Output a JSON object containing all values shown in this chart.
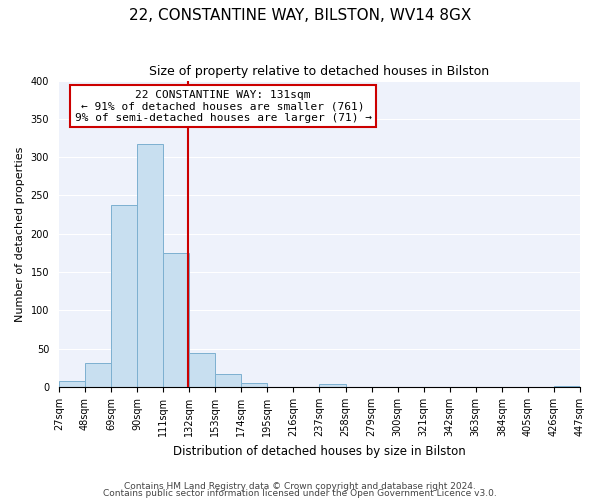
{
  "title": "22, CONSTANTINE WAY, BILSTON, WV14 8GX",
  "subtitle": "Size of property relative to detached houses in Bilston",
  "xlabel": "Distribution of detached houses by size in Bilston",
  "ylabel": "Number of detached properties",
  "bar_edges": [
    27,
    48,
    69,
    90,
    111,
    132,
    153,
    174,
    195,
    216,
    237,
    258,
    279,
    300,
    321,
    342,
    363,
    384,
    405,
    426,
    447
  ],
  "bar_heights": [
    8,
    32,
    238,
    317,
    175,
    45,
    17,
    5,
    0,
    0,
    4,
    0,
    0,
    0,
    0,
    0,
    0,
    0,
    0,
    2
  ],
  "bar_color": "#c8dff0",
  "bar_edgecolor": "#7db0d0",
  "property_line_x": 131,
  "property_line_color": "#cc0000",
  "annotation_title": "22 CONSTANTINE WAY: 131sqm",
  "annotation_line1": "← 91% of detached houses are smaller (761)",
  "annotation_line2": "9% of semi-detached houses are larger (71) →",
  "annotation_box_color": "#ffffff",
  "annotation_box_edgecolor": "#cc0000",
  "ylim": [
    0,
    400
  ],
  "yticks": [
    0,
    50,
    100,
    150,
    200,
    250,
    300,
    350,
    400
  ],
  "tick_labels": [
    "27sqm",
    "48sqm",
    "69sqm",
    "90sqm",
    "111sqm",
    "132sqm",
    "153sqm",
    "174sqm",
    "195sqm",
    "216sqm",
    "237sqm",
    "258sqm",
    "279sqm",
    "300sqm",
    "321sqm",
    "342sqm",
    "363sqm",
    "384sqm",
    "405sqm",
    "426sqm",
    "447sqm"
  ],
  "footer1": "Contains HM Land Registry data © Crown copyright and database right 2024.",
  "footer2": "Contains public sector information licensed under the Open Government Licence v3.0.",
  "bg_color": "#ffffff",
  "plot_bg_color": "#eef2fb",
  "grid_color": "#ffffff",
  "title_fontsize": 11,
  "subtitle_fontsize": 9,
  "ylabel_fontsize": 8,
  "xlabel_fontsize": 8.5,
  "tick_fontsize": 7,
  "annotation_fontsize": 8,
  "footer_fontsize": 6.5
}
